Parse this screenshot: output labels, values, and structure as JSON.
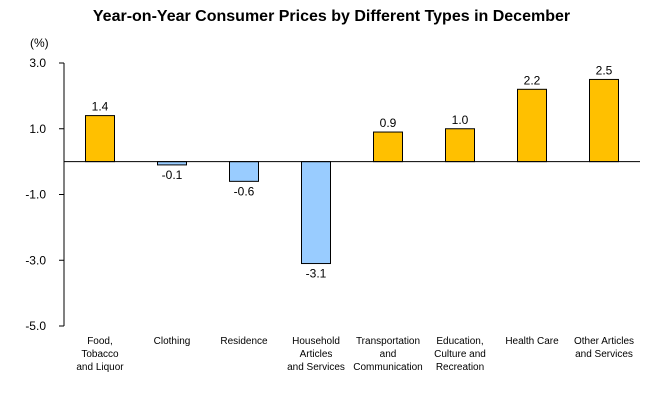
{
  "chart_data": {
    "type": "bar",
    "title": "Year-on-Year Consumer Prices by Different Types in December",
    "unit": "(%)",
    "categories": [
      [
        "Food,",
        "Tobacco",
        "and Liquor"
      ],
      [
        "Clothing"
      ],
      [
        "Residence"
      ],
      [
        "Household",
        "Articles",
        "and Services"
      ],
      [
        "Transportation",
        "and",
        "Communication"
      ],
      [
        "Education,",
        "Culture and",
        "Recreation"
      ],
      [
        "Health Care"
      ],
      [
        "Other Articles",
        "and Services"
      ]
    ],
    "values": [
      1.4,
      -0.1,
      -0.6,
      -3.1,
      0.9,
      1.0,
      2.2,
      2.5
    ],
    "value_labels": [
      "1.4",
      "-0.1",
      "-0.6",
      "-3.1",
      "0.9",
      "1.0",
      "2.2",
      "2.5"
    ],
    "ylim": [
      -5.0,
      3.0
    ],
    "yticks": [
      3.0,
      1.0,
      -1.0,
      -3.0,
      -5.0
    ],
    "ytick_labels": [
      "3.0",
      "1.0",
      "-1.0",
      "-3.0",
      "-5.0"
    ],
    "xlabel": "",
    "ylabel": "",
    "grid": false,
    "legend": "none",
    "colors": {
      "positive": "#FFC000",
      "negative": "#99CCFF",
      "border": "#000000"
    }
  }
}
